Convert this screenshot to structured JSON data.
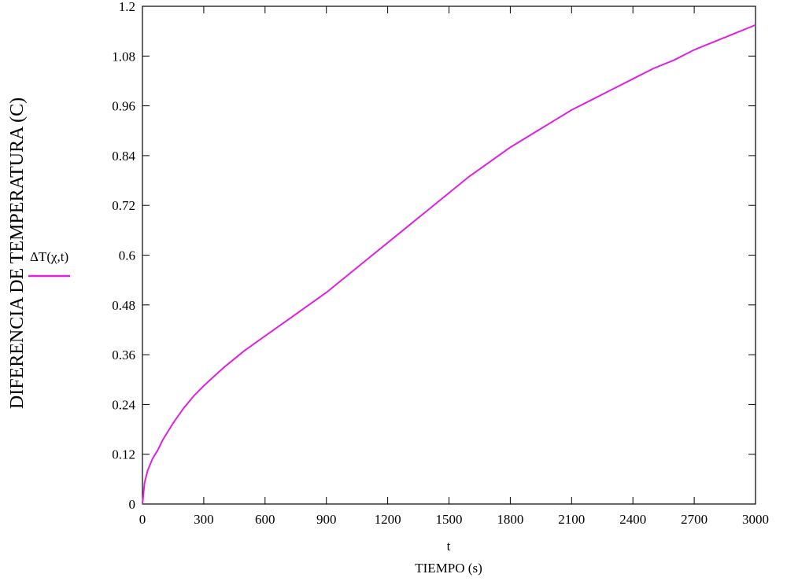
{
  "chart_data": {
    "type": "line",
    "ylabel": "DIFERENCIA DE TEMPERATURA (C)",
    "x_variable": "t",
    "xlabel": "TIEMPO (s)",
    "xlim": [
      0,
      3000
    ],
    "ylim": [
      0,
      1.2
    ],
    "x_ticks": [
      "0",
      "300",
      "600",
      "900",
      "1200",
      "1500",
      "1800",
      "2100",
      "2400",
      "2700",
      "3000"
    ],
    "y_ticks": [
      "0",
      "0.12",
      "0.24",
      "0.36",
      "0.48",
      "0.6",
      "0.72",
      "0.84",
      "0.96",
      "1.08",
      "1.2"
    ],
    "x_tick_values": [
      0,
      300,
      600,
      900,
      1200,
      1500,
      1800,
      2100,
      2400,
      2700,
      3000
    ],
    "y_tick_values": [
      0,
      0.12,
      0.24,
      0.36,
      0.48,
      0.6,
      0.72,
      0.84,
      0.96,
      1.08,
      1.2
    ],
    "grid": false,
    "legend_position": "left",
    "series": [
      {
        "name": "ΔT(χ,t)",
        "color": "#e020e0",
        "x": [
          0,
          10,
          25,
          50,
          75,
          100,
          150,
          200,
          250,
          300,
          400,
          500,
          600,
          700,
          800,
          900,
          1000,
          1100,
          1200,
          1300,
          1400,
          1500,
          1600,
          1700,
          1800,
          1900,
          2000,
          2100,
          2200,
          2300,
          2400,
          2500,
          2600,
          2700,
          2800,
          2900,
          3000
        ],
        "y": [
          0,
          0.05,
          0.08,
          0.11,
          0.13,
          0.155,
          0.195,
          0.23,
          0.26,
          0.285,
          0.33,
          0.37,
          0.405,
          0.44,
          0.475,
          0.51,
          0.55,
          0.59,
          0.63,
          0.67,
          0.71,
          0.75,
          0.79,
          0.825,
          0.86,
          0.89,
          0.92,
          0.95,
          0.975,
          1.0,
          1.025,
          1.05,
          1.07,
          1.095,
          1.115,
          1.135,
          1.155
        ]
      }
    ]
  }
}
